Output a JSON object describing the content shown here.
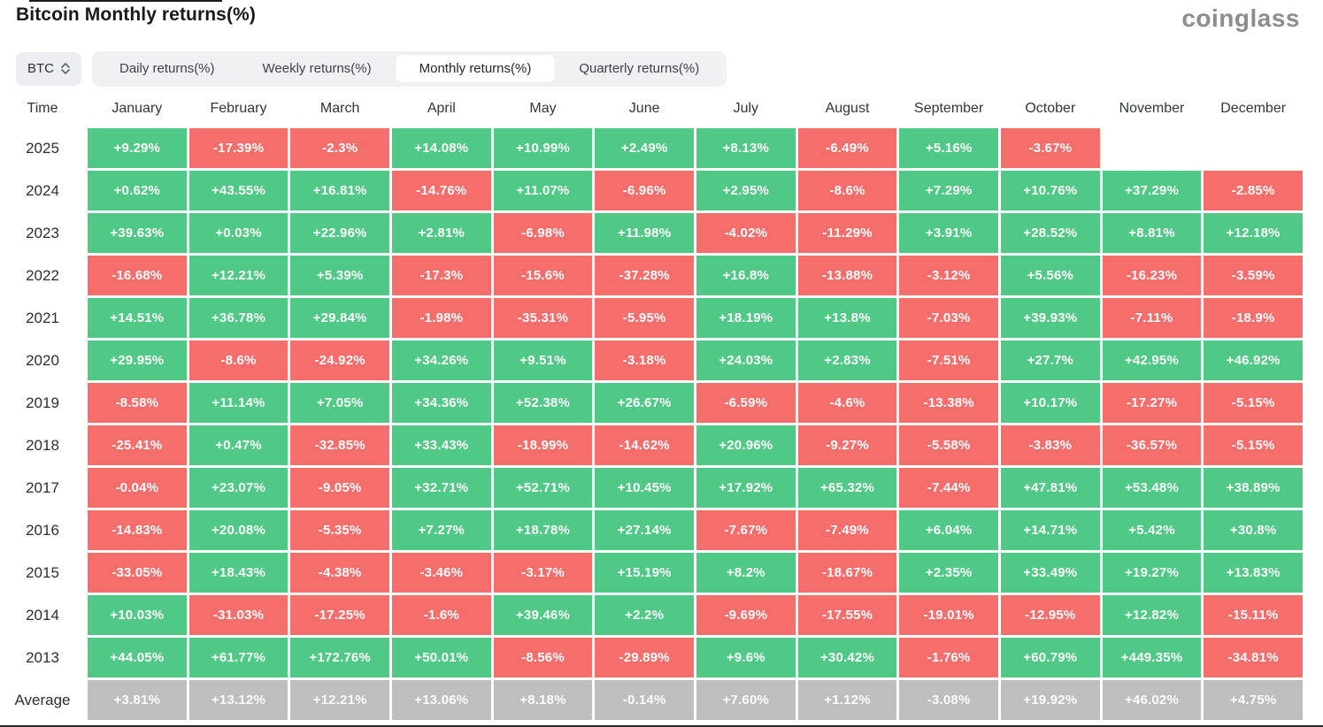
{
  "header": {
    "title": "Bitcoin Monthly returns(%)",
    "logo": "coinglass"
  },
  "controls": {
    "symbol_select": {
      "value": "BTC"
    },
    "tabs": [
      {
        "label": "Daily returns(%)",
        "active": false
      },
      {
        "label": "Weekly returns(%)",
        "active": false
      },
      {
        "label": "Monthly returns(%)",
        "active": true
      },
      {
        "label": "Quarterly returns(%)",
        "active": false
      }
    ]
  },
  "colors": {
    "positive": "#51C986",
    "negative": "#F66E6C",
    "average": "#BEBEBE"
  },
  "chart_data": {
    "type": "heatmap",
    "title": "Bitcoin Monthly returns(%)",
    "columns": [
      "Time",
      "January",
      "February",
      "March",
      "April",
      "May",
      "June",
      "July",
      "August",
      "September",
      "October",
      "November",
      "December"
    ],
    "rows": [
      {
        "label": "2025",
        "cells": [
          {
            "v": "+9.29%",
            "c": "g"
          },
          {
            "v": "-17.39%",
            "c": "r"
          },
          {
            "v": "-2.3%",
            "c": "r"
          },
          {
            "v": "+14.08%",
            "c": "g"
          },
          {
            "v": "+10.99%",
            "c": "g"
          },
          {
            "v": "+2.49%",
            "c": "g"
          },
          {
            "v": "+8.13%",
            "c": "g"
          },
          {
            "v": "-6.49%",
            "c": "r"
          },
          {
            "v": "+5.16%",
            "c": "g"
          },
          {
            "v": "-3.67%",
            "c": "r"
          },
          null,
          null
        ]
      },
      {
        "label": "2024",
        "cells": [
          {
            "v": "+0.62%",
            "c": "g"
          },
          {
            "v": "+43.55%",
            "c": "g"
          },
          {
            "v": "+16.81%",
            "c": "g"
          },
          {
            "v": "-14.76%",
            "c": "r"
          },
          {
            "v": "+11.07%",
            "c": "g"
          },
          {
            "v": "-6.96%",
            "c": "r"
          },
          {
            "v": "+2.95%",
            "c": "g"
          },
          {
            "v": "-8.6%",
            "c": "r"
          },
          {
            "v": "+7.29%",
            "c": "g"
          },
          {
            "v": "+10.76%",
            "c": "g"
          },
          {
            "v": "+37.29%",
            "c": "g"
          },
          {
            "v": "-2.85%",
            "c": "r"
          }
        ]
      },
      {
        "label": "2023",
        "cells": [
          {
            "v": "+39.63%",
            "c": "g"
          },
          {
            "v": "+0.03%",
            "c": "g"
          },
          {
            "v": "+22.96%",
            "c": "g"
          },
          {
            "v": "+2.81%",
            "c": "g"
          },
          {
            "v": "-6.98%",
            "c": "r"
          },
          {
            "v": "+11.98%",
            "c": "g"
          },
          {
            "v": "-4.02%",
            "c": "r"
          },
          {
            "v": "-11.29%",
            "c": "r"
          },
          {
            "v": "+3.91%",
            "c": "g"
          },
          {
            "v": "+28.52%",
            "c": "g"
          },
          {
            "v": "+8.81%",
            "c": "g"
          },
          {
            "v": "+12.18%",
            "c": "g"
          }
        ]
      },
      {
        "label": "2022",
        "cells": [
          {
            "v": "-16.68%",
            "c": "r"
          },
          {
            "v": "+12.21%",
            "c": "g"
          },
          {
            "v": "+5.39%",
            "c": "g"
          },
          {
            "v": "-17.3%",
            "c": "r"
          },
          {
            "v": "-15.6%",
            "c": "r"
          },
          {
            "v": "-37.28%",
            "c": "r"
          },
          {
            "v": "+16.8%",
            "c": "g"
          },
          {
            "v": "-13.88%",
            "c": "r"
          },
          {
            "v": "-3.12%",
            "c": "r"
          },
          {
            "v": "+5.56%",
            "c": "g"
          },
          {
            "v": "-16.23%",
            "c": "r"
          },
          {
            "v": "-3.59%",
            "c": "r"
          }
        ]
      },
      {
        "label": "2021",
        "cells": [
          {
            "v": "+14.51%",
            "c": "g"
          },
          {
            "v": "+36.78%",
            "c": "g"
          },
          {
            "v": "+29.84%",
            "c": "g"
          },
          {
            "v": "-1.98%",
            "c": "r"
          },
          {
            "v": "-35.31%",
            "c": "r"
          },
          {
            "v": "-5.95%",
            "c": "r"
          },
          {
            "v": "+18.19%",
            "c": "g"
          },
          {
            "v": "+13.8%",
            "c": "g"
          },
          {
            "v": "-7.03%",
            "c": "r"
          },
          {
            "v": "+39.93%",
            "c": "g"
          },
          {
            "v": "-7.11%",
            "c": "r"
          },
          {
            "v": "-18.9%",
            "c": "r"
          }
        ]
      },
      {
        "label": "2020",
        "cells": [
          {
            "v": "+29.95%",
            "c": "g"
          },
          {
            "v": "-8.6%",
            "c": "r"
          },
          {
            "v": "-24.92%",
            "c": "r"
          },
          {
            "v": "+34.26%",
            "c": "g"
          },
          {
            "v": "+9.51%",
            "c": "g"
          },
          {
            "v": "-3.18%",
            "c": "r"
          },
          {
            "v": "+24.03%",
            "c": "g"
          },
          {
            "v": "+2.83%",
            "c": "g"
          },
          {
            "v": "-7.51%",
            "c": "r"
          },
          {
            "v": "+27.7%",
            "c": "g"
          },
          {
            "v": "+42.95%",
            "c": "g"
          },
          {
            "v": "+46.92%",
            "c": "g"
          }
        ]
      },
      {
        "label": "2019",
        "cells": [
          {
            "v": "-8.58%",
            "c": "r"
          },
          {
            "v": "+11.14%",
            "c": "g"
          },
          {
            "v": "+7.05%",
            "c": "g"
          },
          {
            "v": "+34.36%",
            "c": "g"
          },
          {
            "v": "+52.38%",
            "c": "g"
          },
          {
            "v": "+26.67%",
            "c": "g"
          },
          {
            "v": "-6.59%",
            "c": "r"
          },
          {
            "v": "-4.6%",
            "c": "r"
          },
          {
            "v": "-13.38%",
            "c": "r"
          },
          {
            "v": "+10.17%",
            "c": "g"
          },
          {
            "v": "-17.27%",
            "c": "r"
          },
          {
            "v": "-5.15%",
            "c": "r"
          }
        ]
      },
      {
        "label": "2018",
        "cells": [
          {
            "v": "-25.41%",
            "c": "r"
          },
          {
            "v": "+0.47%",
            "c": "g"
          },
          {
            "v": "-32.85%",
            "c": "r"
          },
          {
            "v": "+33.43%",
            "c": "g"
          },
          {
            "v": "-18.99%",
            "c": "r"
          },
          {
            "v": "-14.62%",
            "c": "r"
          },
          {
            "v": "+20.96%",
            "c": "g"
          },
          {
            "v": "-9.27%",
            "c": "r"
          },
          {
            "v": "-5.58%",
            "c": "r"
          },
          {
            "v": "-3.83%",
            "c": "r"
          },
          {
            "v": "-36.57%",
            "c": "r"
          },
          {
            "v": "-5.15%",
            "c": "r"
          }
        ]
      },
      {
        "label": "2017",
        "cells": [
          {
            "v": "-0.04%",
            "c": "r"
          },
          {
            "v": "+23.07%",
            "c": "g"
          },
          {
            "v": "-9.05%",
            "c": "r"
          },
          {
            "v": "+32.71%",
            "c": "g"
          },
          {
            "v": "+52.71%",
            "c": "g"
          },
          {
            "v": "+10.45%",
            "c": "g"
          },
          {
            "v": "+17.92%",
            "c": "g"
          },
          {
            "v": "+65.32%",
            "c": "g"
          },
          {
            "v": "-7.44%",
            "c": "r"
          },
          {
            "v": "+47.81%",
            "c": "g"
          },
          {
            "v": "+53.48%",
            "c": "g"
          },
          {
            "v": "+38.89%",
            "c": "g"
          }
        ]
      },
      {
        "label": "2016",
        "cells": [
          {
            "v": "-14.83%",
            "c": "r"
          },
          {
            "v": "+20.08%",
            "c": "g"
          },
          {
            "v": "-5.35%",
            "c": "r"
          },
          {
            "v": "+7.27%",
            "c": "g"
          },
          {
            "v": "+18.78%",
            "c": "g"
          },
          {
            "v": "+27.14%",
            "c": "g"
          },
          {
            "v": "-7.67%",
            "c": "r"
          },
          {
            "v": "-7.49%",
            "c": "r"
          },
          {
            "v": "+6.04%",
            "c": "g"
          },
          {
            "v": "+14.71%",
            "c": "g"
          },
          {
            "v": "+5.42%",
            "c": "g"
          },
          {
            "v": "+30.8%",
            "c": "g"
          }
        ]
      },
      {
        "label": "2015",
        "cells": [
          {
            "v": "-33.05%",
            "c": "r"
          },
          {
            "v": "+18.43%",
            "c": "g"
          },
          {
            "v": "-4.38%",
            "c": "r"
          },
          {
            "v": "-3.46%",
            "c": "r"
          },
          {
            "v": "-3.17%",
            "c": "r"
          },
          {
            "v": "+15.19%",
            "c": "g"
          },
          {
            "v": "+8.2%",
            "c": "g"
          },
          {
            "v": "-18.67%",
            "c": "r"
          },
          {
            "v": "+2.35%",
            "c": "g"
          },
          {
            "v": "+33.49%",
            "c": "g"
          },
          {
            "v": "+19.27%",
            "c": "g"
          },
          {
            "v": "+13.83%",
            "c": "g"
          }
        ]
      },
      {
        "label": "2014",
        "cells": [
          {
            "v": "+10.03%",
            "c": "g"
          },
          {
            "v": "-31.03%",
            "c": "r"
          },
          {
            "v": "-17.25%",
            "c": "r"
          },
          {
            "v": "-1.6%",
            "c": "r"
          },
          {
            "v": "+39.46%",
            "c": "g"
          },
          {
            "v": "+2.2%",
            "c": "g"
          },
          {
            "v": "-9.69%",
            "c": "r"
          },
          {
            "v": "-17.55%",
            "c": "r"
          },
          {
            "v": "-19.01%",
            "c": "r"
          },
          {
            "v": "-12.95%",
            "c": "r"
          },
          {
            "v": "+12.82%",
            "c": "g"
          },
          {
            "v": "-15.11%",
            "c": "r"
          }
        ]
      },
      {
        "label": "2013",
        "cells": [
          {
            "v": "+44.05%",
            "c": "g"
          },
          {
            "v": "+61.77%",
            "c": "g"
          },
          {
            "v": "+172.76%",
            "c": "g"
          },
          {
            "v": "+50.01%",
            "c": "g"
          },
          {
            "v": "-8.56%",
            "c": "r"
          },
          {
            "v": "-29.89%",
            "c": "r"
          },
          {
            "v": "+9.6%",
            "c": "g"
          },
          {
            "v": "+30.42%",
            "c": "g"
          },
          {
            "v": "-1.76%",
            "c": "r"
          },
          {
            "v": "+60.79%",
            "c": "g"
          },
          {
            "v": "+449.35%",
            "c": "g"
          },
          {
            "v": "-34.81%",
            "c": "r"
          }
        ]
      },
      {
        "label": "Average",
        "cells": [
          {
            "v": "+3.81%",
            "c": "a"
          },
          {
            "v": "+13.12%",
            "c": "a"
          },
          {
            "v": "+12.21%",
            "c": "a"
          },
          {
            "v": "+13.06%",
            "c": "a"
          },
          {
            "v": "+8.18%",
            "c": "a"
          },
          {
            "v": "-0.14%",
            "c": "a"
          },
          {
            "v": "+7.60%",
            "c": "a"
          },
          {
            "v": "+1.12%",
            "c": "a"
          },
          {
            "v": "-3.08%",
            "c": "a"
          },
          {
            "v": "+19.92%",
            "c": "a"
          },
          {
            "v": "+46.02%",
            "c": "a"
          },
          {
            "v": "+4.75%",
            "c": "a"
          }
        ]
      }
    ]
  }
}
